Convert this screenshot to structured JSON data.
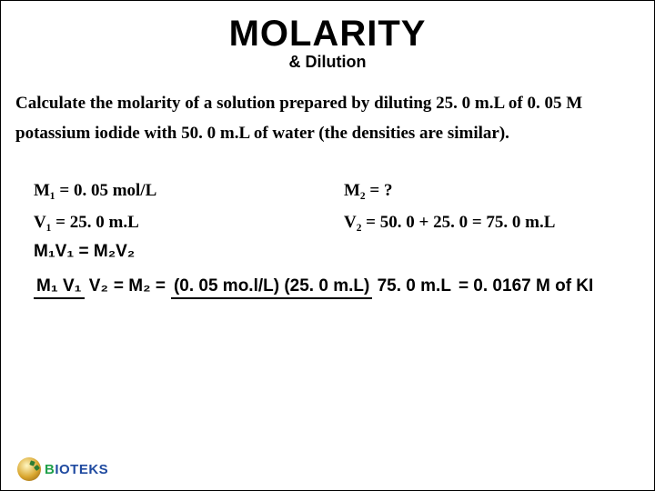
{
  "header": {
    "title": "MOLARITY",
    "subtitle": "& Dilution"
  },
  "problem": "Calculate the molarity of a solution prepared by diluting 25. 0 m.L of 0. 05 M potassium iodide with 50. 0 m.L of water (the densities are similar).",
  "given": {
    "left": {
      "m1": "M₁ = 0. 05 mol/L",
      "v1": "V₁ = 25. 0 m.L"
    },
    "right": {
      "m2": "M₂ = ?",
      "v2": "V₂ = 50. 0 + 25. 0 = 75. 0 m.L"
    }
  },
  "formula": "M₁V₁ = M₂V₂",
  "solution": {
    "lhs_num": "M₁ V₁",
    "lhs_den": "V₂",
    "mid": "= M₂ =",
    "rhs_num": "(0. 05 mo.l/L) (25. 0 m.L)",
    "rhs_den": "75. 0 m.L",
    "result": "=  0. 0167 M of KI"
  },
  "logo": {
    "b": "B",
    "rest": "IOTEKS"
  },
  "style": {
    "title_fontsize": 40,
    "subtitle_fontsize": 18,
    "body_fontsize": 19,
    "title_font": "Arial Black",
    "body_font": "Georgia",
    "accent_green": "#1fa04a",
    "accent_blue": "#1f4aa0",
    "text_color": "#000000",
    "bg_color": "#ffffff"
  }
}
